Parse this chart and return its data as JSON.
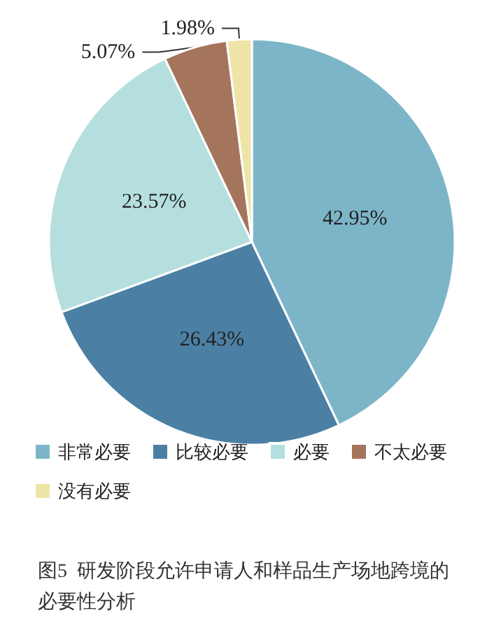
{
  "chart_data": {
    "type": "pie",
    "title": "图5  研发阶段允许申请人和样品生产场地跨境的必要性分析",
    "categories": [
      "非常必要",
      "比较必要",
      "必要",
      "不太必要",
      "没有必要"
    ],
    "values": [
      42.95,
      26.43,
      23.57,
      5.07,
      1.98
    ],
    "value_labels": [
      "42.95%",
      "26.43%",
      "23.57%",
      "5.07%",
      "1.98%"
    ],
    "colors": [
      "#7db5c8",
      "#4b80a4",
      "#b5dfdf",
      "#a5745c",
      "#efe4a8"
    ],
    "legend": "bottom"
  }
}
